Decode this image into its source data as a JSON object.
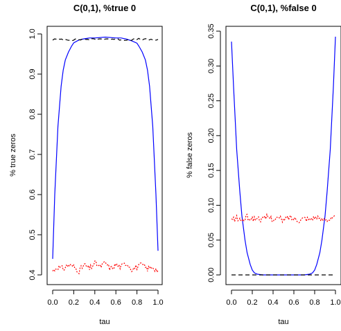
{
  "chart_data": [
    {
      "type": "line",
      "title": "C(0,1), %true 0",
      "xlabel": "tau",
      "ylabel": "% true zeros",
      "xlim": [
        0,
        1
      ],
      "ylim": [
        0.4,
        1.0
      ],
      "x_ticks": [
        "0.0",
        "0.2",
        "0.4",
        "0.6",
        "0.8",
        "1.0"
      ],
      "y_ticks": [
        "0.4",
        "0.5",
        "0.6",
        "0.7",
        "0.8",
        "0.9",
        "1.0"
      ],
      "grid": false,
      "series": [
        {
          "style": "solid",
          "color": "#0000ff",
          "x": [
            0.0,
            0.02,
            0.05,
            0.08,
            0.1,
            0.12,
            0.15,
            0.18,
            0.2,
            0.25,
            0.3,
            0.35,
            0.4,
            0.45,
            0.5,
            0.55,
            0.6,
            0.65,
            0.7,
            0.75,
            0.8,
            0.82,
            0.85,
            0.88,
            0.9,
            0.92,
            0.95,
            0.98,
            1.0
          ],
          "y": [
            0.44,
            0.6,
            0.77,
            0.87,
            0.91,
            0.935,
            0.955,
            0.97,
            0.978,
            0.985,
            0.988,
            0.99,
            0.99,
            0.991,
            0.992,
            0.991,
            0.99,
            0.99,
            0.987,
            0.983,
            0.977,
            0.969,
            0.955,
            0.935,
            0.91,
            0.87,
            0.77,
            0.6,
            0.46
          ]
        },
        {
          "style": "dashed",
          "color": "#000000",
          "x": [
            0.0,
            0.1,
            0.2,
            0.3,
            0.4,
            0.5,
            0.6,
            0.7,
            0.8,
            0.9,
            1.0
          ],
          "y": [
            0.986,
            0.987,
            0.985,
            0.987,
            0.986,
            0.988,
            0.987,
            0.985,
            0.987,
            0.986,
            0.985
          ]
        },
        {
          "style": "dotted",
          "color": "#ff0000",
          "x": [
            0.0,
            0.05,
            0.1,
            0.15,
            0.2,
            0.25,
            0.3,
            0.35,
            0.4,
            0.45,
            0.5,
            0.55,
            0.6,
            0.65,
            0.7,
            0.75,
            0.8,
            0.85,
            0.9,
            0.95,
            1.0
          ],
          "y": [
            0.41,
            0.42,
            0.415,
            0.425,
            0.42,
            0.41,
            0.425,
            0.415,
            0.43,
            0.42,
            0.43,
            0.415,
            0.425,
            0.42,
            0.43,
            0.415,
            0.42,
            0.425,
            0.415,
            0.42,
            0.41
          ]
        }
      ]
    },
    {
      "type": "line",
      "title": "C(0,1), %false 0",
      "xlabel": "tau",
      "ylabel": "% false zeros",
      "xlim": [
        0,
        1
      ],
      "ylim": [
        0,
        0.35
      ],
      "x_ticks": [
        "0.0",
        "0.2",
        "0.4",
        "0.6",
        "0.8",
        "1.0"
      ],
      "y_ticks": [
        "0.00",
        "0.05",
        "0.10",
        "0.15",
        "0.20",
        "0.25",
        "0.30",
        "0.35"
      ],
      "grid": false,
      "series": [
        {
          "style": "solid",
          "color": "#0000ff",
          "x": [
            0.0,
            0.02,
            0.05,
            0.08,
            0.1,
            0.13,
            0.15,
            0.18,
            0.2,
            0.22,
            0.25,
            0.3,
            0.5,
            0.7,
            0.75,
            0.78,
            0.8,
            0.82,
            0.85,
            0.87,
            0.9,
            0.92,
            0.95,
            0.98,
            1.0
          ],
          "y": [
            0.335,
            0.27,
            0.18,
            0.12,
            0.085,
            0.05,
            0.032,
            0.015,
            0.007,
            0.003,
            0.001,
            0.0,
            0.0,
            0.0,
            0.001,
            0.003,
            0.007,
            0.015,
            0.032,
            0.05,
            0.085,
            0.12,
            0.18,
            0.27,
            0.342
          ]
        },
        {
          "style": "dashed",
          "color": "#000000",
          "x": [
            0.0,
            1.0
          ],
          "y": [
            0.0,
            0.0
          ]
        },
        {
          "style": "dotted",
          "color": "#ff0000",
          "x": [
            0.0,
            0.05,
            0.1,
            0.15,
            0.2,
            0.25,
            0.3,
            0.35,
            0.4,
            0.45,
            0.5,
            0.55,
            0.6,
            0.65,
            0.7,
            0.75,
            0.8,
            0.85,
            0.9,
            0.95,
            1.0
          ],
          "y": [
            0.079,
            0.081,
            0.078,
            0.083,
            0.08,
            0.082,
            0.079,
            0.084,
            0.08,
            0.082,
            0.078,
            0.083,
            0.081,
            0.079,
            0.082,
            0.08,
            0.083,
            0.079,
            0.081,
            0.08,
            0.082
          ]
        }
      ]
    }
  ]
}
